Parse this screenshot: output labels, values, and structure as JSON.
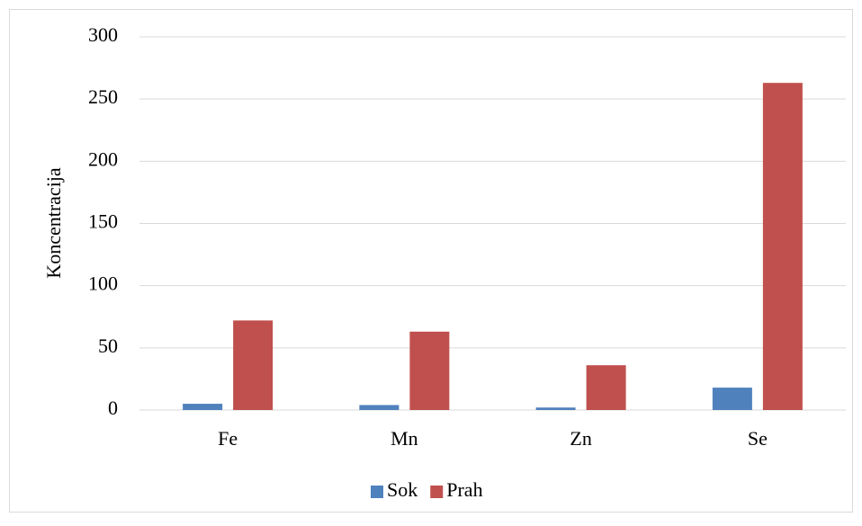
{
  "chart_data": {
    "type": "bar",
    "y_label": "Koncentracija",
    "categories": [
      "Fe",
      "Mn",
      "Zn",
      "Se"
    ],
    "series": [
      {
        "name": "Sok",
        "color": "#4f81bd",
        "values": [
          5,
          4,
          2,
          18
        ]
      },
      {
        "name": "Prah",
        "color": "#c0504d",
        "values": [
          72,
          63,
          36,
          263
        ]
      }
    ],
    "ylim": [
      0,
      300
    ],
    "yticks": [
      0,
      50,
      100,
      150,
      200,
      250,
      300
    ],
    "grid": true,
    "legend": "bottom"
  }
}
